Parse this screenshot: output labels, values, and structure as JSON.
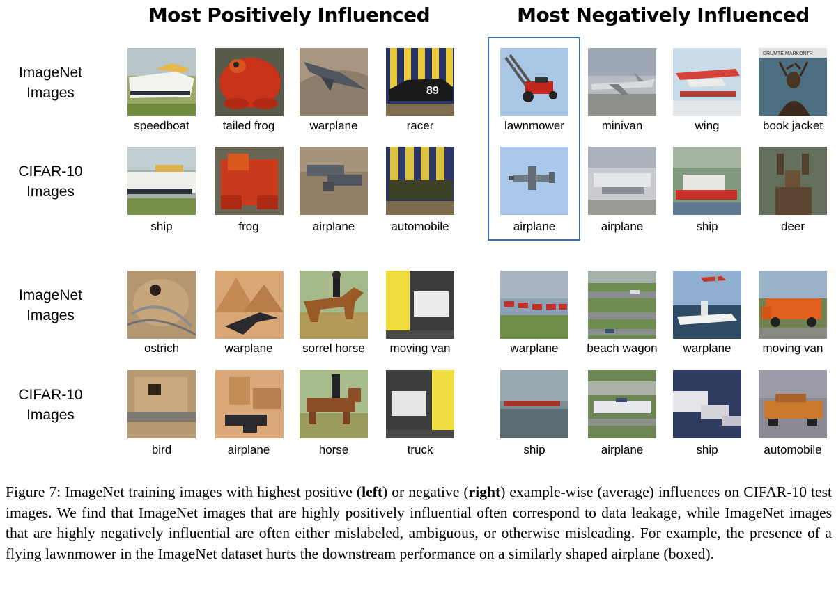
{
  "headers": {
    "left": "Most Positively Influenced",
    "right": "Most Negatively Influenced"
  },
  "row_labels": {
    "imagenet": [
      "ImageNet",
      "Images"
    ],
    "cifar": [
      "CIFAR-10",
      "Images"
    ]
  },
  "left_top": {
    "imagenet": [
      "speedboat",
      "tailed frog",
      "warplane",
      "racer"
    ],
    "cifar": [
      "ship",
      "frog",
      "airplane",
      "automobile"
    ]
  },
  "right_top": {
    "imagenet": [
      "lawnmower",
      "minivan",
      "wing",
      "book jacket"
    ],
    "cifar": [
      "airplane",
      "airplane",
      "ship",
      "deer"
    ]
  },
  "left_bottom": {
    "imagenet": [
      "ostrich",
      "warplane",
      "sorrel horse",
      "moving van"
    ],
    "cifar": [
      "bird",
      "airplane",
      "horse",
      "truck"
    ]
  },
  "right_bottom": {
    "imagenet": [
      "warplane",
      "beach wagon",
      "warplane",
      "moving van"
    ],
    "cifar": [
      "ship",
      "airplane",
      "ship",
      "automobile"
    ]
  },
  "caption": {
    "p1": "Figure 7: ImageNet training images with highest positive (",
    "b1": "left",
    "p2": ") or negative (",
    "b2": "right",
    "p3": ") example-wise (average) influences on CIFAR-10 test images. We find that ImageNet images that are highly positively influential often correspond to data leakage, while ImageNet images that are highly negatively influential are often either mislabeled, ambiguous, or otherwise misleading. For example, the presence of a flying lawnmower in the ImageNet dataset hurts the downstream performance on a similarly shaped airplane (boxed)."
  },
  "colors": {
    "box_border": "#3d6aa8"
  }
}
